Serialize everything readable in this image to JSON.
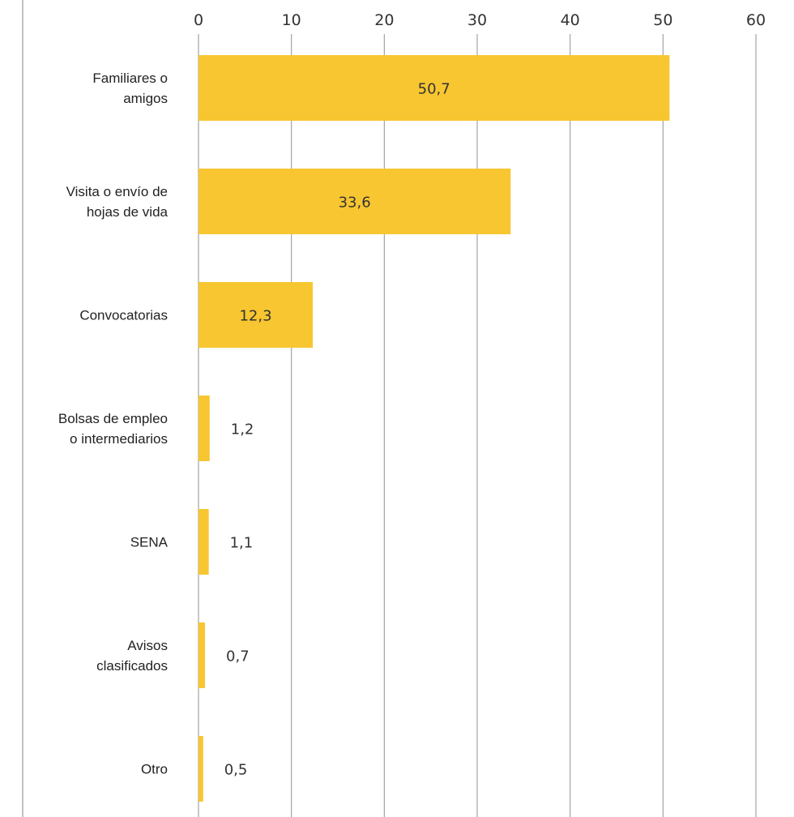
{
  "chart_data": {
    "type": "bar",
    "orientation": "horizontal",
    "title": "",
    "xlabel": "",
    "ylabel": "",
    "xlim": [
      0,
      60
    ],
    "ticks": [
      0,
      10,
      20,
      30,
      40,
      50,
      60
    ],
    "tick_labels": [
      "0",
      "10",
      "20",
      "30",
      "40",
      "50",
      "60"
    ],
    "grid": true,
    "categories": [
      [
        "Familiares o",
        "amigos"
      ],
      [
        "Visita o envío de",
        "hojas de vida"
      ],
      [
        "Convocatorias"
      ],
      [
        "Bolsas de empleo",
        "o intermediarios"
      ],
      [
        "SENA"
      ],
      [
        "Avisos",
        "clasificados"
      ],
      [
        "Otro"
      ]
    ],
    "values": [
      50.7,
      33.6,
      12.3,
      1.2,
      1.1,
      0.7,
      0.5
    ],
    "value_labels": [
      "50,7",
      "33,6",
      "12,3",
      "1,2",
      "1,1",
      "0,7",
      "0,5"
    ],
    "bar_color": "#F7C630",
    "grid_color": "#9a9a9a"
  }
}
